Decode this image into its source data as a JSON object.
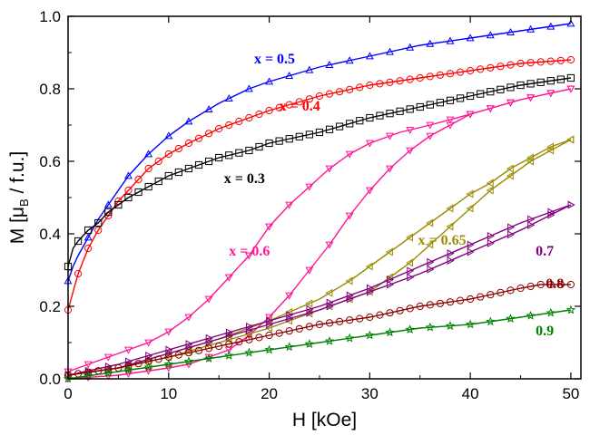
{
  "chart_data": {
    "type": "line",
    "xlabel": "H [kOe]",
    "ylabel": {
      "main": "M  [μ",
      "sub": "B",
      "tail": " / f.u.]"
    },
    "xlim": [
      0,
      51
    ],
    "ylim": [
      0,
      1.0
    ],
    "xticks": [
      0,
      10,
      20,
      30,
      40,
      50
    ],
    "yticks": [
      0.0,
      0.2,
      0.4,
      0.6,
      0.8,
      1.0
    ],
    "xtick_labels": [
      "0",
      "10",
      "20",
      "30",
      "40",
      "50"
    ],
    "ytick_labels": [
      "0.0",
      "0.2",
      "0.4",
      "0.6",
      "0.8",
      "1.0"
    ],
    "grid": false,
    "legend": "inline labels",
    "series": [
      {
        "name": "x = 0.5",
        "color": "#0000ff",
        "marker": "triangle-up",
        "curves": [
          {
            "x": [
              0,
              0.5,
              1,
              2,
              3,
              4,
              5,
              6,
              8,
              10,
              12,
              15,
              18,
              20,
              25,
              30,
              35,
              40,
              45,
              50
            ],
            "y": [
              0.27,
              0.31,
              0.34,
              0.39,
              0.44,
              0.48,
              0.52,
              0.56,
              0.62,
              0.67,
              0.71,
              0.76,
              0.8,
              0.82,
              0.86,
              0.89,
              0.92,
              0.94,
              0.96,
              0.98
            ]
          }
        ]
      },
      {
        "name": "x = 0.4",
        "color": "#ff0000",
        "marker": "circle",
        "curves": [
          {
            "x": [
              0,
              0.5,
              1,
              2,
              3,
              4,
              5,
              6,
              8,
              10,
              12,
              15,
              18,
              20,
              25,
              30,
              35,
              40,
              45,
              50
            ],
            "y": [
              0.19,
              0.24,
              0.29,
              0.36,
              0.41,
              0.45,
              0.49,
              0.52,
              0.58,
              0.62,
              0.65,
              0.69,
              0.72,
              0.74,
              0.78,
              0.81,
              0.83,
              0.85,
              0.87,
              0.88
            ]
          }
        ]
      },
      {
        "name": "x = 0.3",
        "color": "#000000",
        "marker": "square",
        "curves": [
          {
            "x": [
              0,
              0.5,
              1,
              2,
              3,
              4,
              5,
              6,
              8,
              10,
              12,
              15,
              18,
              20,
              25,
              30,
              35,
              40,
              45,
              50
            ],
            "y": [
              0.31,
              0.36,
              0.38,
              0.41,
              0.43,
              0.46,
              0.48,
              0.5,
              0.53,
              0.56,
              0.58,
              0.61,
              0.63,
              0.65,
              0.68,
              0.72,
              0.75,
              0.78,
              0.81,
              0.83
            ]
          }
        ]
      },
      {
        "name": "x = 0.6",
        "color": "#ff1493",
        "marker": "triangle-down",
        "curves": [
          {
            "x": [
              0,
              2,
              5,
              8,
              10,
              12,
              14,
              16,
              18,
              20,
              22,
              24,
              26,
              28,
              30,
              33,
              36,
              40,
              45,
              50
            ],
            "y": [
              0.02,
              0.04,
              0.07,
              0.1,
              0.13,
              0.17,
              0.22,
              0.28,
              0.34,
              0.42,
              0.48,
              0.53,
              0.58,
              0.62,
              0.65,
              0.68,
              0.7,
              0.73,
              0.77,
              0.8
            ]
          },
          {
            "x": [
              0,
              5,
              10,
              12,
              14,
              16,
              18,
              20,
              22,
              24,
              26,
              28,
              30,
              32,
              34,
              36,
              38,
              40,
              45,
              50
            ],
            "y": [
              0.0,
              0.01,
              0.03,
              0.04,
              0.06,
              0.08,
              0.12,
              0.17,
              0.23,
              0.3,
              0.37,
              0.45,
              0.52,
              0.58,
              0.63,
              0.67,
              0.7,
              0.73,
              0.77,
              0.8
            ]
          }
        ]
      },
      {
        "name": "x = 0.65",
        "color": "#9b8b00",
        "marker": "triangle-left",
        "curves": [
          {
            "x": [
              0,
              5,
              10,
              15,
              20,
              25,
              28,
              30,
              32,
              34,
              36,
              38,
              40,
              42,
              44,
              46,
              48,
              50
            ],
            "y": [
              0.01,
              0.03,
              0.07,
              0.11,
              0.16,
              0.22,
              0.27,
              0.31,
              0.35,
              0.39,
              0.43,
              0.47,
              0.51,
              0.54,
              0.58,
              0.61,
              0.64,
              0.66
            ]
          },
          {
            "x": [
              0,
              5,
              10,
              15,
              20,
              25,
              30,
              32,
              34,
              36,
              38,
              40,
              42,
              44,
              46,
              48,
              50
            ],
            "y": [
              0.01,
              0.03,
              0.06,
              0.1,
              0.14,
              0.19,
              0.24,
              0.28,
              0.32,
              0.37,
              0.42,
              0.47,
              0.52,
              0.56,
              0.6,
              0.63,
              0.66
            ]
          }
        ]
      },
      {
        "name": "0.7",
        "color": "#800080",
        "marker": "triangle-right",
        "curves": [
          {
            "x": [
              0,
              5,
              10,
              15,
              20,
              25,
              30,
              35,
              40,
              45,
              50
            ],
            "y": [
              0.01,
              0.04,
              0.08,
              0.12,
              0.16,
              0.2,
              0.25,
              0.31,
              0.37,
              0.43,
              0.48
            ]
          },
          {
            "x": [
              0,
              5,
              10,
              15,
              20,
              25,
              30,
              35,
              40,
              45,
              50
            ],
            "y": [
              0.01,
              0.03,
              0.07,
              0.11,
              0.15,
              0.19,
              0.24,
              0.29,
              0.35,
              0.41,
              0.48
            ]
          }
        ]
      },
      {
        "name": "0.8",
        "color": "#8b0000",
        "marker": "circle",
        "curves": [
          {
            "x": [
              0,
              5,
              10,
              15,
              20,
              25,
              30,
              35,
              40,
              45,
              47,
              50
            ],
            "y": [
              0.01,
              0.03,
              0.06,
              0.09,
              0.12,
              0.15,
              0.17,
              0.2,
              0.22,
              0.25,
              0.26,
              0.26
            ]
          }
        ]
      },
      {
        "name": "0.9",
        "color": "#008000",
        "marker": "star",
        "curves": [
          {
            "x": [
              0,
              5,
              10,
              15,
              20,
              25,
              30,
              35,
              40,
              45,
              50
            ],
            "y": [
              0.0,
              0.02,
              0.04,
              0.06,
              0.08,
              0.1,
              0.12,
              0.14,
              0.15,
              0.17,
              0.19
            ]
          }
        ]
      }
    ],
    "labels": [
      {
        "text": "x = 0.5",
        "color": "#0000ff",
        "x": 18.5,
        "y": 0.87
      },
      {
        "text": "x = 0.4",
        "color": "#ff0000",
        "x": 21.0,
        "y": 0.74
      },
      {
        "text": "x = 0.3",
        "color": "#000000",
        "x": 15.5,
        "y": 0.54
      },
      {
        "text": "x = 0.6",
        "color": "#ff1493",
        "x": 16.0,
        "y": 0.34
      },
      {
        "text": "x = 0.65",
        "color": "#9b8b00",
        "x": 34.8,
        "y": 0.37
      },
      {
        "text": "0.7",
        "color": "#800080",
        "x": 46.5,
        "y": 0.34
      },
      {
        "text": "0.8",
        "color": "#8b0000",
        "x": 47.5,
        "y": 0.25
      },
      {
        "text": "0.9",
        "color": "#008000",
        "x": 46.5,
        "y": 0.12
      }
    ]
  }
}
